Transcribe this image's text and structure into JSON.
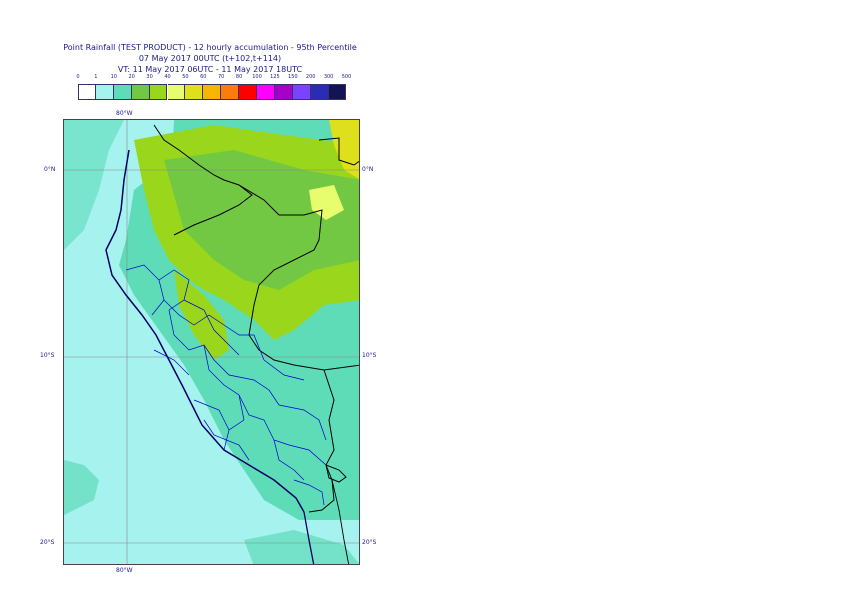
{
  "title": {
    "line1": "Point Rainfall (TEST PRODUCT) - 12 hourly accumulation - 95th Percentile",
    "line2": "07 May 2017 00UTC (t+102,t+114)",
    "line3": "VT: 11 May 2017 06UTC - 11 May 2017 18UTC"
  },
  "legend": {
    "ticks": [
      "0",
      "1",
      "10",
      "20",
      "30",
      "40",
      "50",
      "60",
      "70",
      "80",
      "100",
      "125",
      "150",
      "200",
      "300",
      "500"
    ],
    "colors": [
      "#ffffff",
      "#a6f2ef",
      "#5edcb8",
      "#73c843",
      "#9ad61b",
      "#e7fd6d",
      "#dde01a",
      "#f8b500",
      "#ff7b0b",
      "#ff0000",
      "#ff00ff",
      "#a500c8",
      "#7b43ff",
      "#2b2bb5",
      "#141455"
    ]
  },
  "axes": {
    "lon_top": "80°W",
    "lon_bottom": "80°W",
    "lat_left": [
      "0°N",
      "10°S",
      "20°S"
    ],
    "lat_right": [
      "0°N",
      "10°S",
      "20°S"
    ]
  },
  "colors": {
    "ocean_light": "#a6f2ef",
    "ocean_teal": "#5edcb8",
    "land_green": "#9ad61b",
    "land_dark": "#73c843",
    "land_yellow": "#dde01a",
    "border_black": "#000000",
    "admin_blue": "#0000cc",
    "coast_navy": "#000066"
  }
}
